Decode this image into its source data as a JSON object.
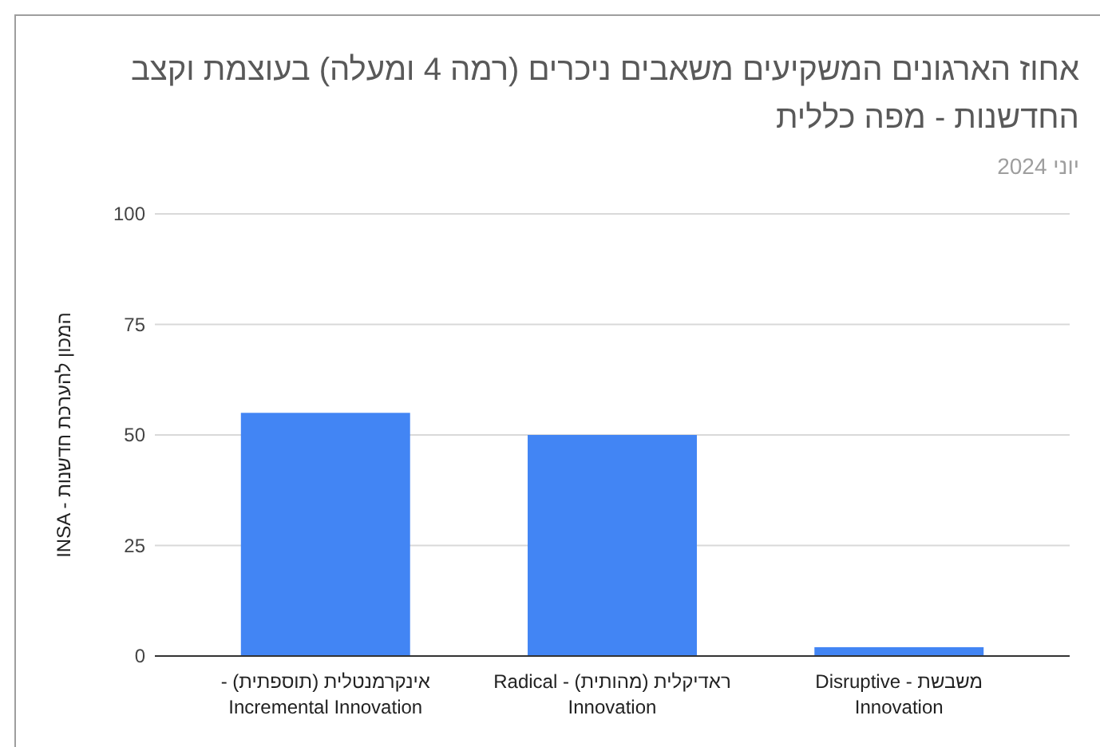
{
  "chart_data": {
    "type": "bar",
    "title": "אחוז הארגונים המשקיעים משאבים ניכרים (רמה 4 ומעלה) בעוצמת וקצב החדשנות - מפה כללית",
    "subtitle": "יוני 2024",
    "ylabel": "INSA - המכון להערכת חדשנות",
    "categories": [
      "אינקרמנטלית (תוספתית) - Incremental Innovation",
      "ראדיקלית (מהותית) - Radical Innovation",
      "משבשת - Disruptive Innovation"
    ],
    "values": [
      55,
      50,
      2
    ],
    "color": "#4285f4",
    "ylim": [
      0,
      100
    ],
    "yticks": [
      0,
      25,
      50,
      75,
      100
    ],
    "grid": "y"
  }
}
